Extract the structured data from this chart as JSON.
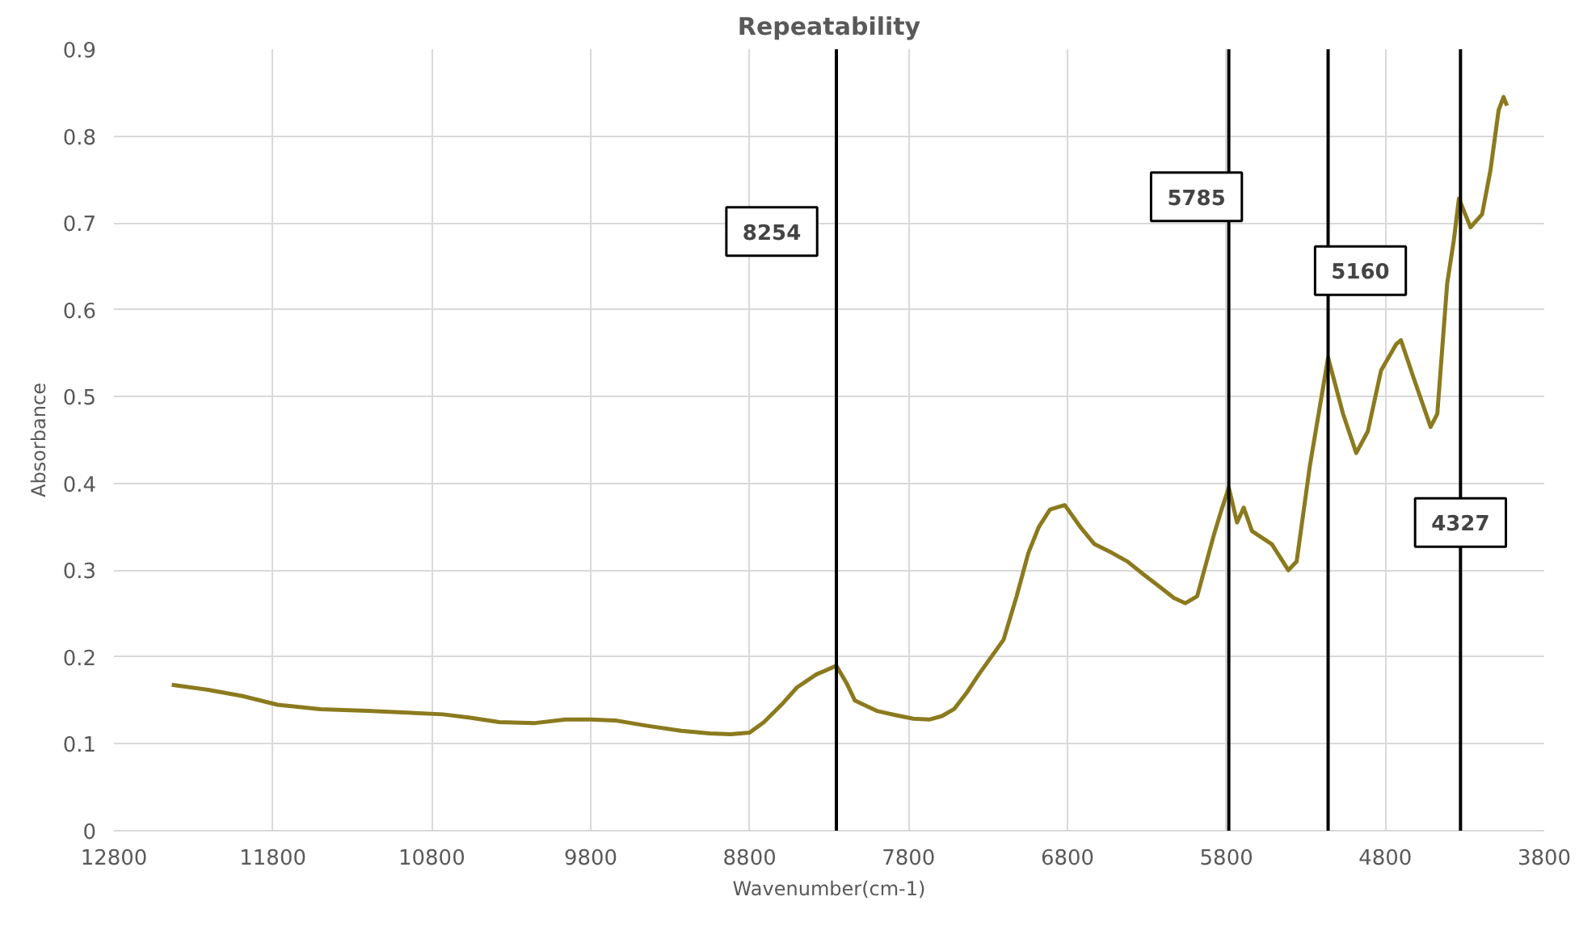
{
  "chart_data": {
    "type": "line",
    "title": "Repeatability",
    "xlabel": "Wavenumber(cm-1)",
    "ylabel": "Absorbance",
    "x": [
      12436,
      12200,
      11990,
      11770,
      11500,
      11208,
      10950,
      10729,
      10550,
      10375,
      10150,
      9959,
      9800,
      9647,
      9450,
      9231,
      9050,
      8919,
      8800,
      8710,
      8600,
      8502,
      8380,
      8254,
      8190,
      8138,
      8000,
      7878,
      7770,
      7670,
      7590,
      7514,
      7430,
      7358,
      7280,
      7202,
      7120,
      7046,
      6980,
      6910,
      6817,
      6720,
      6630,
      6520,
      6422,
      6320,
      6214,
      6130,
      6058,
      5984,
      5880,
      5830,
      5785,
      5733,
      5691,
      5639,
      5514,
      5410,
      5358,
      5275,
      5160,
      5066,
      4983,
      4910,
      4827,
      4733,
      4702,
      4619,
      4515,
      4473,
      4411,
      4369,
      4337,
      4264,
      4191,
      4139,
      4087,
      4056,
      4035
    ],
    "series": [
      {
        "color": "#8b7a1e",
        "values": [
          0.168,
          0.162,
          0.155,
          0.145,
          0.14,
          0.138,
          0.136,
          0.134,
          0.13,
          0.125,
          0.124,
          0.128,
          0.128,
          0.127,
          0.121,
          0.115,
          0.112,
          0.111,
          0.113,
          0.125,
          0.145,
          0.165,
          0.18,
          0.19,
          0.17,
          0.15,
          0.138,
          0.133,
          0.129,
          0.128,
          0.132,
          0.14,
          0.16,
          0.18,
          0.2,
          0.22,
          0.27,
          0.32,
          0.35,
          0.37,
          0.375,
          0.35,
          0.33,
          0.32,
          0.31,
          0.295,
          0.28,
          0.268,
          0.262,
          0.27,
          0.34,
          0.37,
          0.395,
          0.355,
          0.372,
          0.345,
          0.33,
          0.3,
          0.31,
          0.42,
          0.545,
          0.48,
          0.435,
          0.46,
          0.53,
          0.56,
          0.565,
          0.52,
          0.465,
          0.48,
          0.63,
          0.68,
          0.728,
          0.695,
          0.71,
          0.76,
          0.83,
          0.845,
          0.835
        ]
      }
    ],
    "xlim": [
      12800,
      3800
    ],
    "xticks": [
      12800,
      11800,
      10800,
      9800,
      8800,
      7800,
      6800,
      5800,
      4800,
      3800
    ],
    "ylim": [
      0,
      0.9
    ],
    "yticks": [
      0,
      0.1,
      0.2,
      0.3,
      0.4,
      0.5,
      0.6,
      0.7,
      0.8,
      0.9
    ],
    "grid": true,
    "marker": "none",
    "line_style": "solid",
    "ref_lines": [
      {
        "axis": "x",
        "value": 8254,
        "label": "8254",
        "color": "#000000"
      },
      {
        "axis": "x",
        "value": 5785,
        "label": "5785",
        "color": "#000000"
      },
      {
        "axis": "x",
        "value": 5160,
        "label": "5160",
        "color": "#000000"
      },
      {
        "axis": "x",
        "value": 4327,
        "label": "4327",
        "color": "#000000"
      }
    ]
  }
}
